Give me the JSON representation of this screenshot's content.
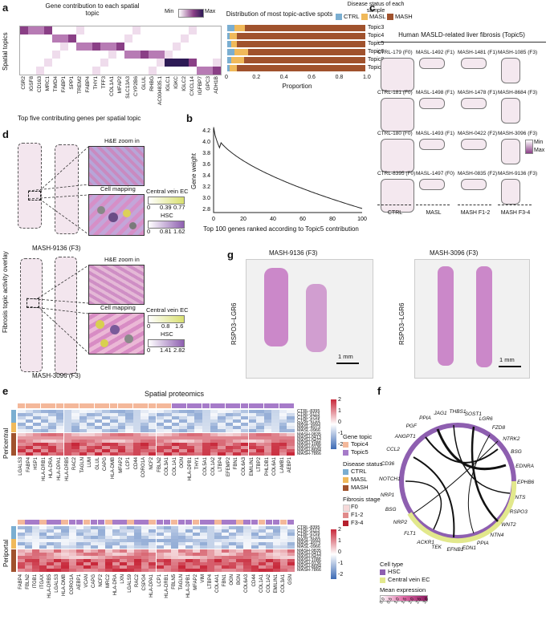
{
  "panels": {
    "a": {
      "label": "a",
      "title_left": "Gene contribution to each spatial topic",
      "title_right": "Distribution of most topic-active spots",
      "legend_min": "Min",
      "legend_max": "Max",
      "y_axis_title": "Spatial topics",
      "disease_title": "Disease status of each sample",
      "disease_items": [
        "CTRL",
        "MASL",
        "MASH"
      ],
      "topics": [
        "Topic3",
        "Topic4",
        "Topic5",
        "Topic6",
        "Topic8",
        "Topic11"
      ],
      "genes": [
        "C5R2",
        "IGSF8",
        "CD163",
        "MRC1",
        "TIMD4",
        "FABP1",
        "SPP1",
        "TREM2",
        "FABP4",
        "THY1",
        "TFF3",
        "COL1A1",
        "MFAP2",
        "SLC13A3",
        "CYP2B6",
        "GLUL",
        "RHBG",
        "AC004835.1",
        "IGLC1",
        "IGKC",
        "IGLC2",
        "CXCL14",
        "IGFBP7",
        "GPC3",
        "ADH1B"
      ],
      "x_axis_title": "Proportion",
      "x_ticks": [
        "0",
        "0.2",
        "0.4",
        "0.6",
        "0.8",
        "1.0"
      ]
    },
    "b": {
      "label": "b",
      "title": "Top five contributing genes per spatial topic",
      "y_axis_title": "Gene weight",
      "y_ticks": [
        "4.2",
        "4.0",
        "3.8",
        "3.6",
        "3.4",
        "3.2",
        "3.0",
        "2.8"
      ],
      "x_ticks": [
        "0",
        "20",
        "40",
        "60",
        "80",
        "100"
      ],
      "x_axis_title": "Top 100 genes ranked according to Topic5 contribution"
    },
    "c": {
      "label": "c",
      "title": "Human MASLD-related liver fibrosis (Topic5)",
      "legend_min": "Min",
      "legend_max": "Max",
      "samples": [
        "CTRL-179 (F0)",
        "CTRL-181 (F0)",
        "CTRL-180 (F0)",
        "CTRL-8395 (F0)",
        "MASL-1492 (F1)",
        "MASL-1498 (F1)",
        "MASL-1493 (F1)",
        "MASL-1497 (F0)",
        "MASH-1481 (F1)",
        "MASH-1478 (F1)",
        "MASH-0422 (F2)",
        "MASH-0835 (F2)",
        "MASH-1085 (F3)",
        "MASH-8684 (F3)",
        "MASH-3096 (F3)",
        "MASH-9136 (F3)"
      ],
      "groups": [
        "CTRL",
        "MASL",
        "MASH F1-2",
        "MASH F3-4"
      ]
    },
    "d": {
      "label": "d",
      "side_title": "Fibrosis topic activity overlay",
      "he_zoom": "H&E zoom in",
      "cell_mapping": "Cell mapping",
      "central_vein": "Central vein EC",
      "hsc": "HSC",
      "scale1_ec": [
        "0",
        "0.39",
        "0.77"
      ],
      "scale1_hsc": [
        "0",
        "0.81",
        "1.62"
      ],
      "scale2_ec": [
        "0",
        "0.8",
        "1.6"
      ],
      "scale2_hsc": [
        "0",
        "1.41",
        "2.82"
      ],
      "sample1": "MASH-9136 (F3)",
      "sample2": "MASH-3096 (F3)"
    },
    "g": {
      "label": "g",
      "title_left": "MASH-9136 (F3)",
      "title_right": "MASH-3096 (F3)",
      "side_label": "RSPO3–LGR6",
      "scale": "1 mm"
    },
    "e": {
      "label": "e",
      "title": "Spatial proteomics",
      "pericentral": "Pericentral",
      "periportal": "Periportal",
      "samples": [
        "CTRL-8395",
        "CTRL-5113",
        "CTRL-5759",
        "CTRL-6715",
        "MASL-9993",
        "MASL-4973",
        "MASL-0966",
        "MASH-0835",
        "MASH-0413",
        "MASH-0422",
        "MASH-1086",
        "MASH-9136",
        "MASH-8684",
        "MASH-7866"
      ],
      "top_genes": [
        "LGALS3",
        "FABP4",
        "HSP1",
        "HLA-DRB1",
        "HLA-DRA",
        "HLA-DPA1",
        "HLA-DRB5",
        "RAC2",
        "TAGLN",
        "LUM",
        "GLUL",
        "CAPG",
        "HLA-DMB",
        "MFAP2",
        "LCP1",
        "CD44",
        "CORO1A",
        "NCF2",
        "FBLN2",
        "COL3A1",
        "COL1A1",
        "OGN",
        "HLA-DPB1",
        "THY1",
        "COL5A1",
        "COL1A2",
        "LTBP4",
        "EFEMP2",
        "FBN1",
        "COL6A3",
        "EMILIN1",
        "LTBP2",
        "PHLDB1",
        "COL6A1",
        "LAMB1",
        "AEBP1"
      ],
      "bottom_genes": [
        "FABP4",
        "FBLN2",
        "ITGB1",
        "ITGAX",
        "HLA-DRB5",
        "LGALS3",
        "HLA-DMB",
        "CORO1A",
        "AEBP1",
        "VCAN",
        "CAPG",
        "NCF2",
        "MRC2",
        "HLA-DRA",
        "LXN",
        "LGALS9",
        "RAC2",
        "CSPG4",
        "HLA-DPA1",
        "LCP1",
        "HLA-DRB1",
        "FBLN5",
        "TAGLN",
        "HLA-DPB1",
        "MFAP2",
        "VIM",
        "LTBP4",
        "COL4A1",
        "FBN1",
        "OGN",
        "BGN",
        "COL6A3",
        "CD44",
        "COL1A1",
        "COL1A2",
        "EMILIN1",
        "COL3A1",
        "GSN"
      ],
      "colorbar_ticks": [
        "2",
        "1",
        "0",
        "-1",
        "-2"
      ],
      "legend_gene_topic": "Gene topic",
      "legend_topics": [
        "Topic4",
        "Topic5"
      ],
      "legend_disease": "Disease status",
      "legend_diseases": [
        "CTRL",
        "MASL",
        "MASH"
      ],
      "legend_fibrosis": "Fibrosis stage",
      "legend_stages": [
        "F0",
        "F1-2",
        "F3-4"
      ]
    },
    "f": {
      "label": "f",
      "genes": [
        "ANGPT1",
        "PGF",
        "PPIA",
        "JAG1",
        "THBS1",
        "SOST1",
        "LGR6",
        "FZD8",
        "NTRK2",
        "BSG",
        "EDNRA",
        "EPHB6",
        "NTS",
        "RSPO3",
        "WNT2",
        "NTN4",
        "PPIA",
        "EDN1",
        "EFNB1",
        "TEK",
        "ACKR1",
        "FLT1",
        "NRP2",
        "BSG",
        "NRP1",
        "NOTCH1",
        "CD36",
        "CCL2"
      ],
      "cell_type": "Cell type",
      "cell_types": [
        "HSC",
        "Central vein EC"
      ],
      "mean_expression": "Mean expression",
      "mean_ticks": [
        "0.0",
        "0.5",
        "1.0",
        "1.5",
        "2.0",
        "2.5",
        "3.0"
      ]
    }
  },
  "colors": {
    "purple": "#8a3f86",
    "darkpurple": "#2d1a55",
    "mash": "#a0522d",
    "masl": "#f0b95a",
    "ctrl": "#7aaed1",
    "topic4": "#f4b89a",
    "topic5": "#a67bc9",
    "hsc": "#8e5fb0",
    "cvec": "#e2e88c",
    "red": "#c8283a",
    "blue": "#3d6bb5"
  }
}
